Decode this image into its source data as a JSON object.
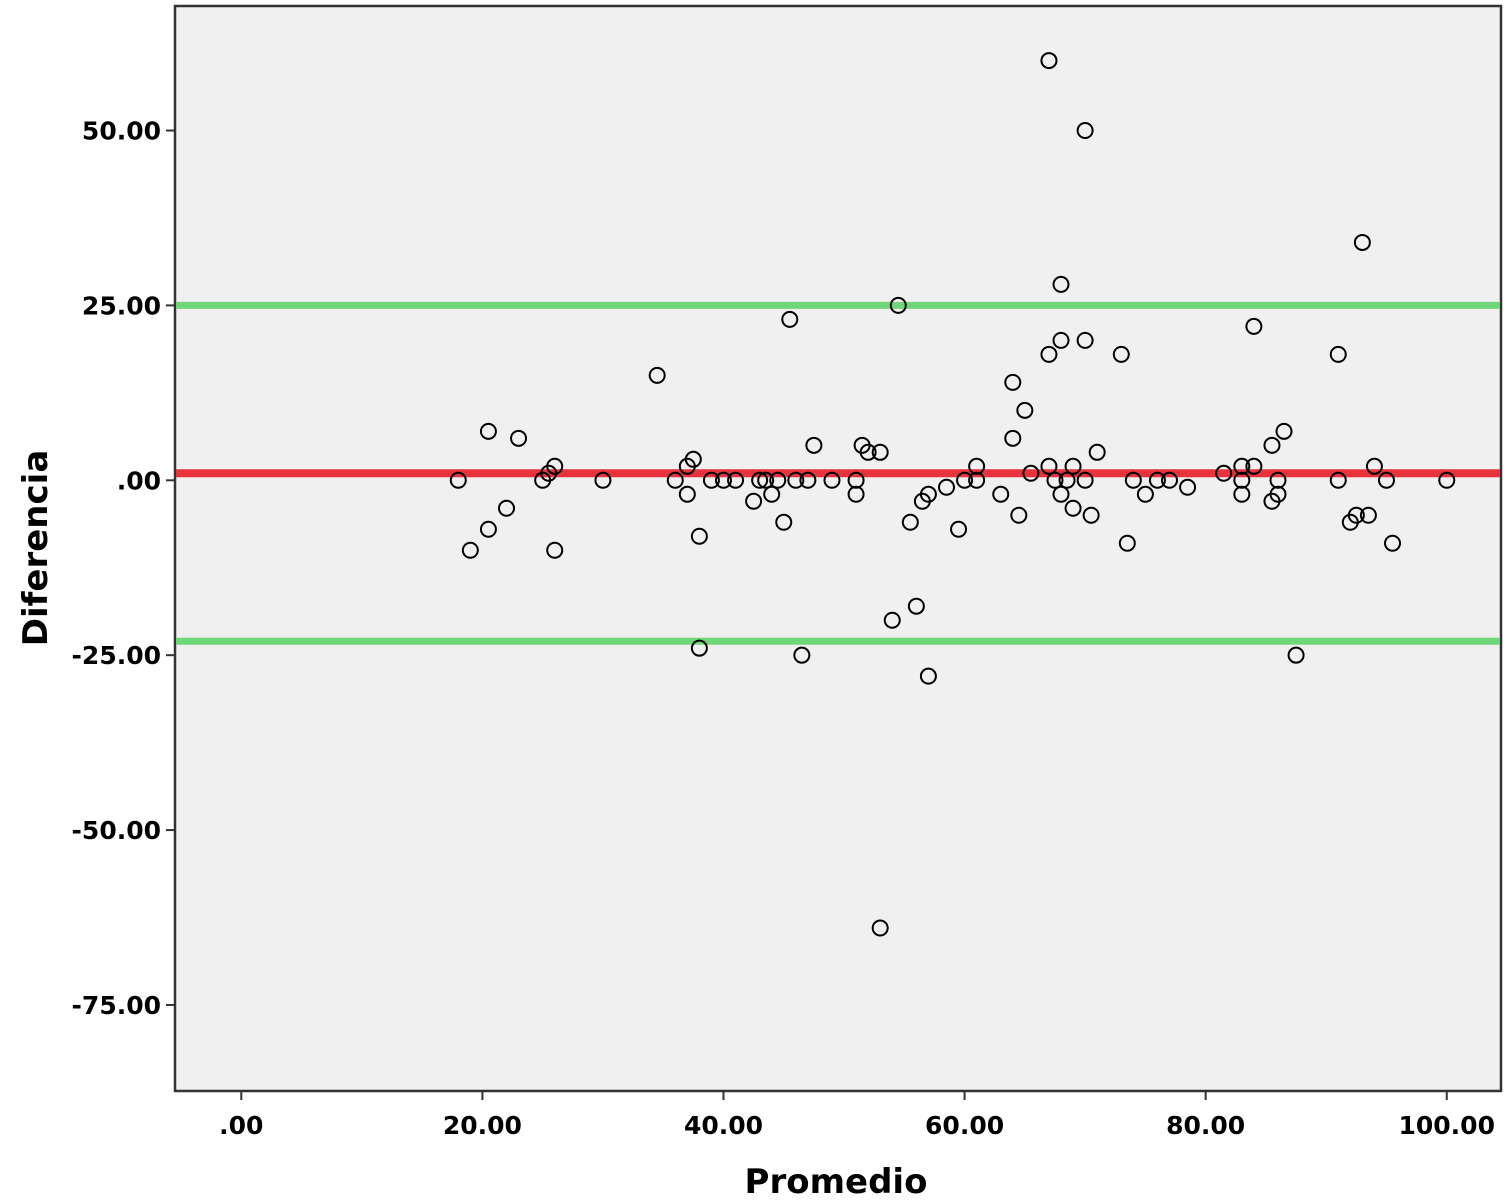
{
  "chart_data": {
    "type": "scatter",
    "title": "",
    "xlabel": "Promedio",
    "ylabel": "Diferencia",
    "xlim": [
      -5.5,
      104.5
    ],
    "ylim": [
      -87.3,
      67.8
    ],
    "x_ticks": [
      0,
      20,
      40,
      60,
      80,
      100
    ],
    "x_tick_labels": [
      ".00",
      "20.00",
      "40.00",
      "60.00",
      "80.00",
      "100.00"
    ],
    "y_ticks": [
      50,
      25,
      0,
      -25,
      -50,
      -75
    ],
    "y_tick_labels": [
      "50.00",
      "25.00",
      ".00",
      "-25.00",
      "-50.00",
      "-75.00"
    ],
    "grid": false,
    "background_color": "#f0f0f0",
    "marker_color": "#000000",
    "reference_lines": [
      {
        "y": 1,
        "color": "#e8323c",
        "role": "mean"
      },
      {
        "y": 25,
        "color": "#6fd67a",
        "role": "upper"
      },
      {
        "y": -23,
        "color": "#6fd67a",
        "role": "lower"
      }
    ],
    "points": [
      [
        18.0,
        0
      ],
      [
        19.0,
        -10
      ],
      [
        20.5,
        7
      ],
      [
        20.5,
        -7
      ],
      [
        22.0,
        -4
      ],
      [
        23.0,
        6
      ],
      [
        25.0,
        0
      ],
      [
        25.5,
        1
      ],
      [
        26.0,
        2
      ],
      [
        26.0,
        -10
      ],
      [
        30.0,
        0
      ],
      [
        34.5,
        15
      ],
      [
        36.0,
        0
      ],
      [
        37.0,
        2
      ],
      [
        37.0,
        -2
      ],
      [
        37.5,
        3
      ],
      [
        38.0,
        -8
      ],
      [
        38.0,
        -24
      ],
      [
        39.0,
        0
      ],
      [
        40.0,
        0
      ],
      [
        41.0,
        0
      ],
      [
        42.5,
        -3
      ],
      [
        43.0,
        0
      ],
      [
        43.5,
        0
      ],
      [
        44.0,
        -2
      ],
      [
        44.5,
        0
      ],
      [
        45.0,
        -6
      ],
      [
        45.5,
        23
      ],
      [
        46.0,
        0
      ],
      [
        46.5,
        -25
      ],
      [
        47.0,
        0
      ],
      [
        47.5,
        5
      ],
      [
        49.0,
        0
      ],
      [
        51.0,
        0
      ],
      [
        51.0,
        -2
      ],
      [
        51.5,
        5
      ],
      [
        52.0,
        4
      ],
      [
        53.0,
        4
      ],
      [
        53.0,
        -64
      ],
      [
        54.0,
        -20
      ],
      [
        54.5,
        25
      ],
      [
        55.5,
        -6
      ],
      [
        56.0,
        -18
      ],
      [
        56.5,
        -3
      ],
      [
        57.0,
        -2
      ],
      [
        57.0,
        -28
      ],
      [
        58.5,
        -1
      ],
      [
        59.5,
        -7
      ],
      [
        60.0,
        0
      ],
      [
        61.0,
        2
      ],
      [
        61.0,
        0
      ],
      [
        63.0,
        -2
      ],
      [
        64.0,
        14
      ],
      [
        64.0,
        6
      ],
      [
        64.5,
        -5
      ],
      [
        65.0,
        10
      ],
      [
        65.5,
        1
      ],
      [
        67.0,
        60
      ],
      [
        67.0,
        18
      ],
      [
        67.0,
        2
      ],
      [
        67.5,
        0
      ],
      [
        68.0,
        28
      ],
      [
        68.0,
        20
      ],
      [
        68.0,
        -2
      ],
      [
        68.5,
        0
      ],
      [
        69.0,
        2
      ],
      [
        69.0,
        -4
      ],
      [
        70.0,
        50
      ],
      [
        70.0,
        20
      ],
      [
        70.0,
        0
      ],
      [
        70.5,
        -5
      ],
      [
        71.0,
        4
      ],
      [
        73.0,
        18
      ],
      [
        73.5,
        -9
      ],
      [
        74.0,
        0
      ],
      [
        75.0,
        -2
      ],
      [
        76.0,
        0
      ],
      [
        77.0,
        0
      ],
      [
        78.5,
        -1
      ],
      [
        81.5,
        1
      ],
      [
        83.0,
        2
      ],
      [
        83.0,
        0
      ],
      [
        83.0,
        -2
      ],
      [
        84.0,
        22
      ],
      [
        84.0,
        2
      ],
      [
        85.5,
        5
      ],
      [
        85.5,
        -3
      ],
      [
        86.0,
        -2
      ],
      [
        86.0,
        0
      ],
      [
        86.5,
        7
      ],
      [
        87.5,
        -25
      ],
      [
        91.0,
        18
      ],
      [
        91.0,
        0
      ],
      [
        92.0,
        -6
      ],
      [
        92.5,
        -5
      ],
      [
        93.0,
        34
      ],
      [
        93.5,
        -5
      ],
      [
        94.0,
        2
      ],
      [
        95.0,
        0
      ],
      [
        95.5,
        -9
      ],
      [
        100.0,
        0
      ]
    ]
  }
}
